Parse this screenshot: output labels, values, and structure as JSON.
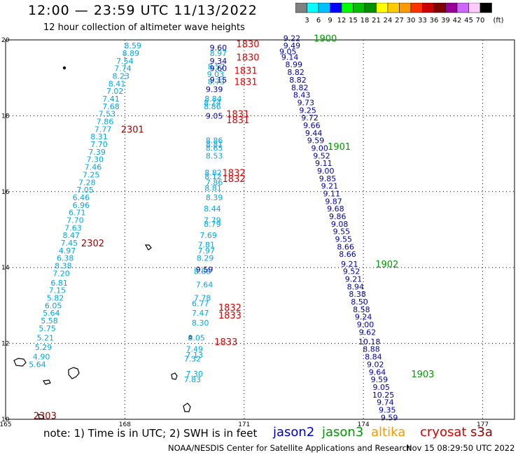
{
  "title": "12:00 — 23:59 UTC 11/13/2022",
  "subtitle": "12 hour collection of altimeter wave heights",
  "colorbar": {
    "unit": "(ft)",
    "ticks": [
      "3",
      "6",
      "9",
      "12",
      "15",
      "18",
      "21",
      "24",
      "27",
      "30",
      "33",
      "36",
      "39",
      "42",
      "45",
      "70"
    ],
    "colors": [
      "#808080",
      "#00ffff",
      "#00c0ff",
      "#0000ff",
      "#00ff00",
      "#00c000",
      "#009000",
      "#ffff00",
      "#ffcc00",
      "#ff9900",
      "#ff3300",
      "#cc0000",
      "#800000",
      "#990099",
      "#cc66ff",
      "#ffccff",
      "#000000"
    ]
  },
  "note": "note: 1) Time is in UTC; 2) SWH is in feet",
  "legend": [
    {
      "label": "jason2",
      "color": "#0000cc"
    },
    {
      "label": "jason3",
      "color": "#009900"
    },
    {
      "label": "altika",
      "color": "#ff9900"
    },
    {
      "label": "cryosat",
      "color": "#dd0000"
    },
    {
      "label": "s3a",
      "color": "#990000"
    }
  ],
  "credit": "NOAA/NESDIS Center for Satellite Applications and Research",
  "timestamp": "Nov 15 08:29:50 UTC 2022",
  "chart_data": {
    "type": "scatter",
    "xlim": [
      165,
      177.8
    ],
    "ylim": [
      10,
      20
    ],
    "x_ticks": [
      "165",
      "168",
      "171",
      "174",
      "177"
    ],
    "y_ticks": [
      "10",
      "12",
      "14",
      "16",
      "18",
      "20"
    ],
    "grid": true,
    "series": [
      {
        "color": "#00a8e8",
        "points": [
          [
            168.2,
            19.85,
            "8.59"
          ],
          [
            168.15,
            19.65,
            "8.89"
          ],
          [
            168.0,
            19.45,
            "7.54"
          ],
          [
            167.95,
            19.25,
            "7.74"
          ],
          [
            167.9,
            19.05,
            "8.23"
          ],
          [
            167.8,
            18.85,
            "8.41"
          ],
          [
            167.75,
            18.65,
            "7.02"
          ],
          [
            167.65,
            18.45,
            "7.41"
          ],
          [
            167.65,
            18.25,
            "7.68"
          ],
          [
            167.55,
            18.05,
            "7.53"
          ],
          [
            167.5,
            17.85,
            "7.86"
          ],
          [
            167.45,
            17.65,
            "7.77"
          ],
          [
            167.35,
            17.45,
            "8.31"
          ],
          [
            167.35,
            17.25,
            "7.70"
          ],
          [
            167.3,
            17.05,
            "7.39"
          ],
          [
            167.25,
            16.85,
            "7.30"
          ],
          [
            167.2,
            16.65,
            "7.46"
          ],
          [
            167.15,
            16.45,
            "7.25"
          ],
          [
            167.05,
            16.25,
            "7.28"
          ],
          [
            167.0,
            16.05,
            "7.05"
          ],
          [
            166.9,
            15.85,
            "6.46"
          ],
          [
            166.9,
            15.65,
            "6.96"
          ],
          [
            166.8,
            15.45,
            "6.71"
          ],
          [
            166.75,
            15.25,
            "7.70"
          ],
          [
            166.7,
            15.05,
            "7.63"
          ],
          [
            166.65,
            14.85,
            "8.47"
          ],
          [
            166.6,
            14.65,
            "7.45"
          ],
          [
            166.55,
            14.45,
            "4.97"
          ],
          [
            166.5,
            14.25,
            "6.38"
          ],
          [
            166.45,
            14.05,
            "8.38"
          ],
          [
            166.4,
            13.85,
            "7.20"
          ],
          [
            166.35,
            13.6,
            "6.81"
          ],
          [
            166.3,
            13.4,
            "7.15"
          ],
          [
            166.25,
            13.2,
            "5.82"
          ],
          [
            166.2,
            13.0,
            "6.05"
          ],
          [
            166.15,
            12.8,
            "5.64"
          ],
          [
            166.1,
            12.6,
            "5.58"
          ],
          [
            166.05,
            12.4,
            "5.75"
          ],
          [
            166.0,
            12.15,
            "5.21"
          ],
          [
            165.95,
            11.9,
            "5.29"
          ],
          [
            165.9,
            11.65,
            "4.90"
          ],
          [
            165.8,
            11.45,
            "5.64"
          ]
        ]
      },
      {
        "color": "#00a8e8",
        "points": [
          [
            170.35,
            19.65,
            "8.97"
          ],
          [
            170.3,
            19.3,
            "8.57"
          ],
          [
            170.28,
            19.1,
            "9.03"
          ],
          [
            170.3,
            18.9,
            "8.73"
          ],
          [
            170.22,
            18.45,
            "8.84"
          ],
          [
            170.2,
            18.35,
            "8.74"
          ],
          [
            170.2,
            18.25,
            "8.86"
          ],
          [
            170.25,
            17.35,
            "8.86"
          ],
          [
            170.25,
            17.25,
            "8.81"
          ],
          [
            170.25,
            17.15,
            "8.65"
          ],
          [
            170.25,
            16.95,
            "8.53"
          ],
          [
            170.22,
            16.5,
            "8.82"
          ],
          [
            170.22,
            16.4,
            "8.12"
          ],
          [
            170.25,
            16.25,
            "7.86"
          ],
          [
            170.22,
            16.1,
            "8.81"
          ],
          [
            170.25,
            15.85,
            "8.39"
          ],
          [
            170.2,
            15.55,
            "8.44"
          ],
          [
            170.2,
            15.25,
            "7.79"
          ],
          [
            170.2,
            15.15,
            "8.79"
          ],
          [
            170.1,
            14.85,
            "7.69"
          ],
          [
            170.05,
            14.6,
            "7.81"
          ],
          [
            170.05,
            14.45,
            "7.97"
          ],
          [
            170.02,
            14.25,
            "8.29"
          ],
          [
            169.95,
            13.9,
            "8.88"
          ],
          [
            170.0,
            13.55,
            "7.64"
          ],
          [
            169.95,
            13.2,
            "7.78"
          ],
          [
            169.9,
            13.05,
            "6.77"
          ],
          [
            169.9,
            12.8,
            "7.47"
          ],
          [
            169.9,
            12.55,
            "8.30"
          ],
          [
            169.8,
            12.15,
            "8.05"
          ],
          [
            169.75,
            11.85,
            "7.49"
          ],
          [
            169.75,
            11.7,
            "7.13"
          ],
          [
            169.7,
            11.6,
            "7.32"
          ],
          [
            169.75,
            11.2,
            "7.30"
          ],
          [
            169.7,
            11.05,
            "7.83"
          ]
        ]
      },
      {
        "color": "#0000b0",
        "points": [
          [
            170.35,
            19.8,
            "9.60"
          ],
          [
            170.35,
            19.45,
            "9.34"
          ],
          [
            170.35,
            19.25,
            "9.60"
          ],
          [
            170.35,
            18.95,
            "9.15"
          ],
          [
            170.25,
            18.7,
            "9.39"
          ],
          [
            170.25,
            18.0,
            "9.05"
          ],
          [
            170.0,
            13.95,
            "9.59"
          ],
          [
            172.2,
            20.05,
            "9.22"
          ],
          [
            172.2,
            19.85,
            "9.49"
          ],
          [
            172.1,
            19.7,
            "9.05"
          ],
          [
            172.15,
            19.55,
            "9.14"
          ],
          [
            172.25,
            19.35,
            "8.99"
          ],
          [
            172.3,
            19.15,
            "8.82"
          ],
          [
            172.35,
            18.95,
            "8.82"
          ],
          [
            172.4,
            18.75,
            "8.82"
          ],
          [
            172.45,
            18.55,
            "8.43"
          ],
          [
            172.55,
            18.35,
            "9.73"
          ],
          [
            172.6,
            18.15,
            "9.25"
          ],
          [
            172.65,
            17.95,
            "9.72"
          ],
          [
            172.7,
            17.75,
            "9.66"
          ],
          [
            172.75,
            17.55,
            "9.44"
          ],
          [
            172.8,
            17.35,
            "9.59"
          ],
          [
            172.9,
            17.15,
            "9.00"
          ],
          [
            172.95,
            16.95,
            "9.52"
          ],
          [
            173.0,
            16.75,
            "9.11"
          ],
          [
            173.05,
            16.55,
            "9.00"
          ],
          [
            173.1,
            16.35,
            "9.85"
          ],
          [
            173.15,
            16.15,
            "9.21"
          ],
          [
            173.2,
            15.95,
            "9.11"
          ],
          [
            173.25,
            15.75,
            "9.87"
          ],
          [
            173.3,
            15.55,
            "9.68"
          ],
          [
            173.35,
            15.35,
            "9.86"
          ],
          [
            173.4,
            15.15,
            "9.08"
          ],
          [
            173.45,
            14.95,
            "9.55"
          ],
          [
            173.5,
            14.75,
            "9.55"
          ],
          [
            173.55,
            14.55,
            "8.66"
          ],
          [
            173.6,
            14.35,
            "8.66"
          ],
          [
            173.65,
            14.1,
            "9.21"
          ],
          [
            173.7,
            13.9,
            "9.52"
          ],
          [
            173.75,
            13.7,
            "9.21"
          ],
          [
            173.8,
            13.5,
            "8.94"
          ],
          [
            173.85,
            13.3,
            "8.38"
          ],
          [
            173.9,
            13.1,
            "8.50"
          ],
          [
            173.95,
            12.9,
            "8.58"
          ],
          [
            174.0,
            12.7,
            "9.24"
          ],
          [
            174.05,
            12.5,
            "9.00"
          ],
          [
            174.1,
            12.3,
            "9.62"
          ],
          [
            174.15,
            12.05,
            "10.18"
          ],
          [
            174.2,
            11.85,
            "8.88"
          ],
          [
            174.25,
            11.65,
            "8.84"
          ],
          [
            174.3,
            11.45,
            "9.02"
          ],
          [
            174.35,
            11.25,
            "9.64"
          ],
          [
            174.4,
            11.05,
            "9.59"
          ],
          [
            174.45,
            10.85,
            "9.05"
          ],
          [
            174.5,
            10.65,
            "10.25"
          ],
          [
            174.55,
            10.45,
            "9.74"
          ],
          [
            174.6,
            10.25,
            "9.35"
          ],
          [
            174.65,
            10.05,
            "9.59"
          ]
        ]
      }
    ],
    "time_labels": [
      {
        "x": 170.8,
        "y": 19.9,
        "text": "1830",
        "color": "#dd0000"
      },
      {
        "x": 170.8,
        "y": 19.55,
        "text": "1830",
        "color": "#dd0000"
      },
      {
        "x": 170.75,
        "y": 19.2,
        "text": "1831",
        "color": "#dd0000"
      },
      {
        "x": 170.75,
        "y": 18.9,
        "text": "1831",
        "color": "#dd0000"
      },
      {
        "x": 170.55,
        "y": 18.05,
        "text": "1831",
        "color": "#dd0000"
      },
      {
        "x": 170.55,
        "y": 17.9,
        "text": "1831",
        "color": "#dd0000"
      },
      {
        "x": 170.45,
        "y": 16.5,
        "text": "1832",
        "color": "#dd0000"
      },
      {
        "x": 170.45,
        "y": 16.35,
        "text": "1832",
        "color": "#dd0000"
      },
      {
        "x": 170.35,
        "y": 12.95,
        "text": "1832",
        "color": "#dd0000"
      },
      {
        "x": 170.35,
        "y": 12.75,
        "text": "1833",
        "color": "#dd0000"
      },
      {
        "x": 170.25,
        "y": 12.05,
        "text": "1833",
        "color": "#dd0000"
      },
      {
        "x": 167.9,
        "y": 17.65,
        "text": "2301",
        "color": "#990000"
      },
      {
        "x": 166.9,
        "y": 14.65,
        "text": "2302",
        "color": "#990000"
      },
      {
        "x": 165.7,
        "y": 10.1,
        "text": "2303",
        "color": "#990000"
      },
      {
        "x": 172.75,
        "y": 20.05,
        "text": "1900",
        "color": "#009900"
      },
      {
        "x": 173.1,
        "y": 17.2,
        "text": "1901",
        "color": "#009900"
      },
      {
        "x": 174.3,
        "y": 14.1,
        "text": "1902",
        "color": "#009900"
      },
      {
        "x": 175.2,
        "y": 11.2,
        "text": "1903",
        "color": "#009900"
      }
    ]
  }
}
